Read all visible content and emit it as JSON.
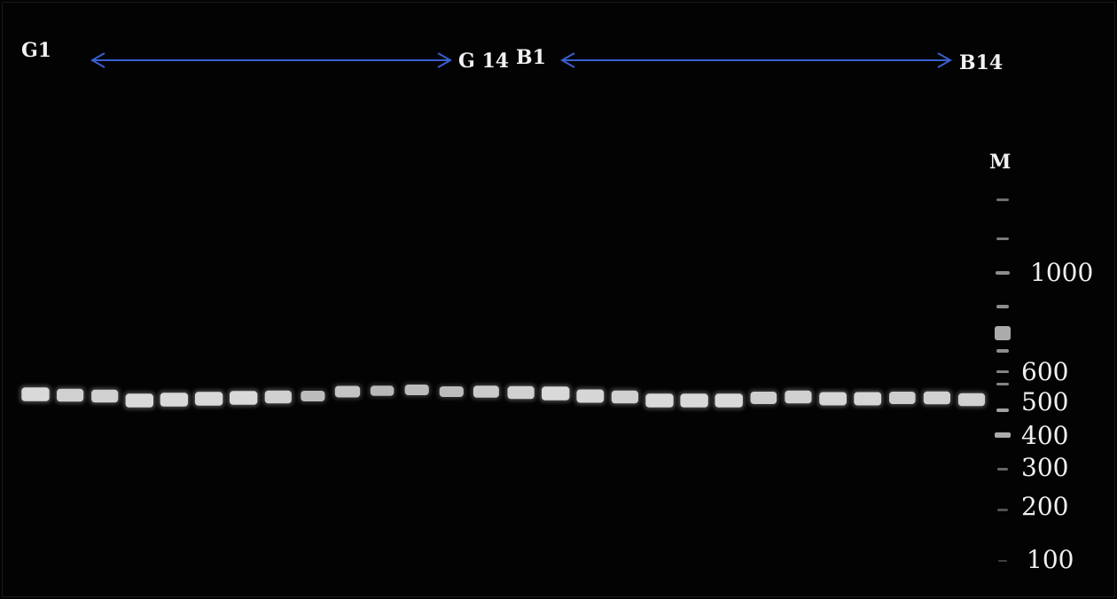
{
  "labels": {
    "g_start": "G1",
    "g_end": "G 14",
    "b_start": "B1",
    "b_end": "B14",
    "marker": "M"
  },
  "ladder_sizes": [
    "1000",
    "600",
    "500",
    "400",
    "300",
    "200",
    "100"
  ],
  "colors": {
    "background": "#030303",
    "band": "#dcdcdc",
    "arrow": "#3a5fd0",
    "text": "#f2f2f2"
  },
  "sample_bands": [
    {
      "group": "G",
      "intensity": 0.95
    },
    {
      "group": "G",
      "intensity": 0.85
    },
    {
      "group": "G",
      "intensity": 0.85
    },
    {
      "group": "G",
      "intensity": 0.95
    },
    {
      "group": "G",
      "intensity": 0.95
    },
    {
      "group": "G",
      "intensity": 0.95
    },
    {
      "group": "G",
      "intensity": 0.95
    },
    {
      "group": "G",
      "intensity": 0.85
    },
    {
      "group": "G",
      "intensity": 0.6
    },
    {
      "group": "G",
      "intensity": 0.7
    },
    {
      "group": "G",
      "intensity": 0.55
    },
    {
      "group": "G",
      "intensity": 0.6
    },
    {
      "group": "G",
      "intensity": 0.6
    },
    {
      "group": "G",
      "intensity": 0.75
    },
    {
      "group": "B",
      "intensity": 0.85
    },
    {
      "group": "B",
      "intensity": 0.95
    },
    {
      "group": "B",
      "intensity": 0.9
    },
    {
      "group": "B",
      "intensity": 0.85
    },
    {
      "group": "B",
      "intensity": 0.95
    },
    {
      "group": "B",
      "intensity": 0.95
    },
    {
      "group": "B",
      "intensity": 0.95
    },
    {
      "group": "B",
      "intensity": 0.8
    },
    {
      "group": "B",
      "intensity": 0.85
    },
    {
      "group": "B",
      "intensity": 0.9
    },
    {
      "group": "B",
      "intensity": 0.9
    },
    {
      "group": "B",
      "intensity": 0.8
    },
    {
      "group": "B",
      "intensity": 0.85
    },
    {
      "group": "B",
      "intensity": 0.85
    }
  ]
}
